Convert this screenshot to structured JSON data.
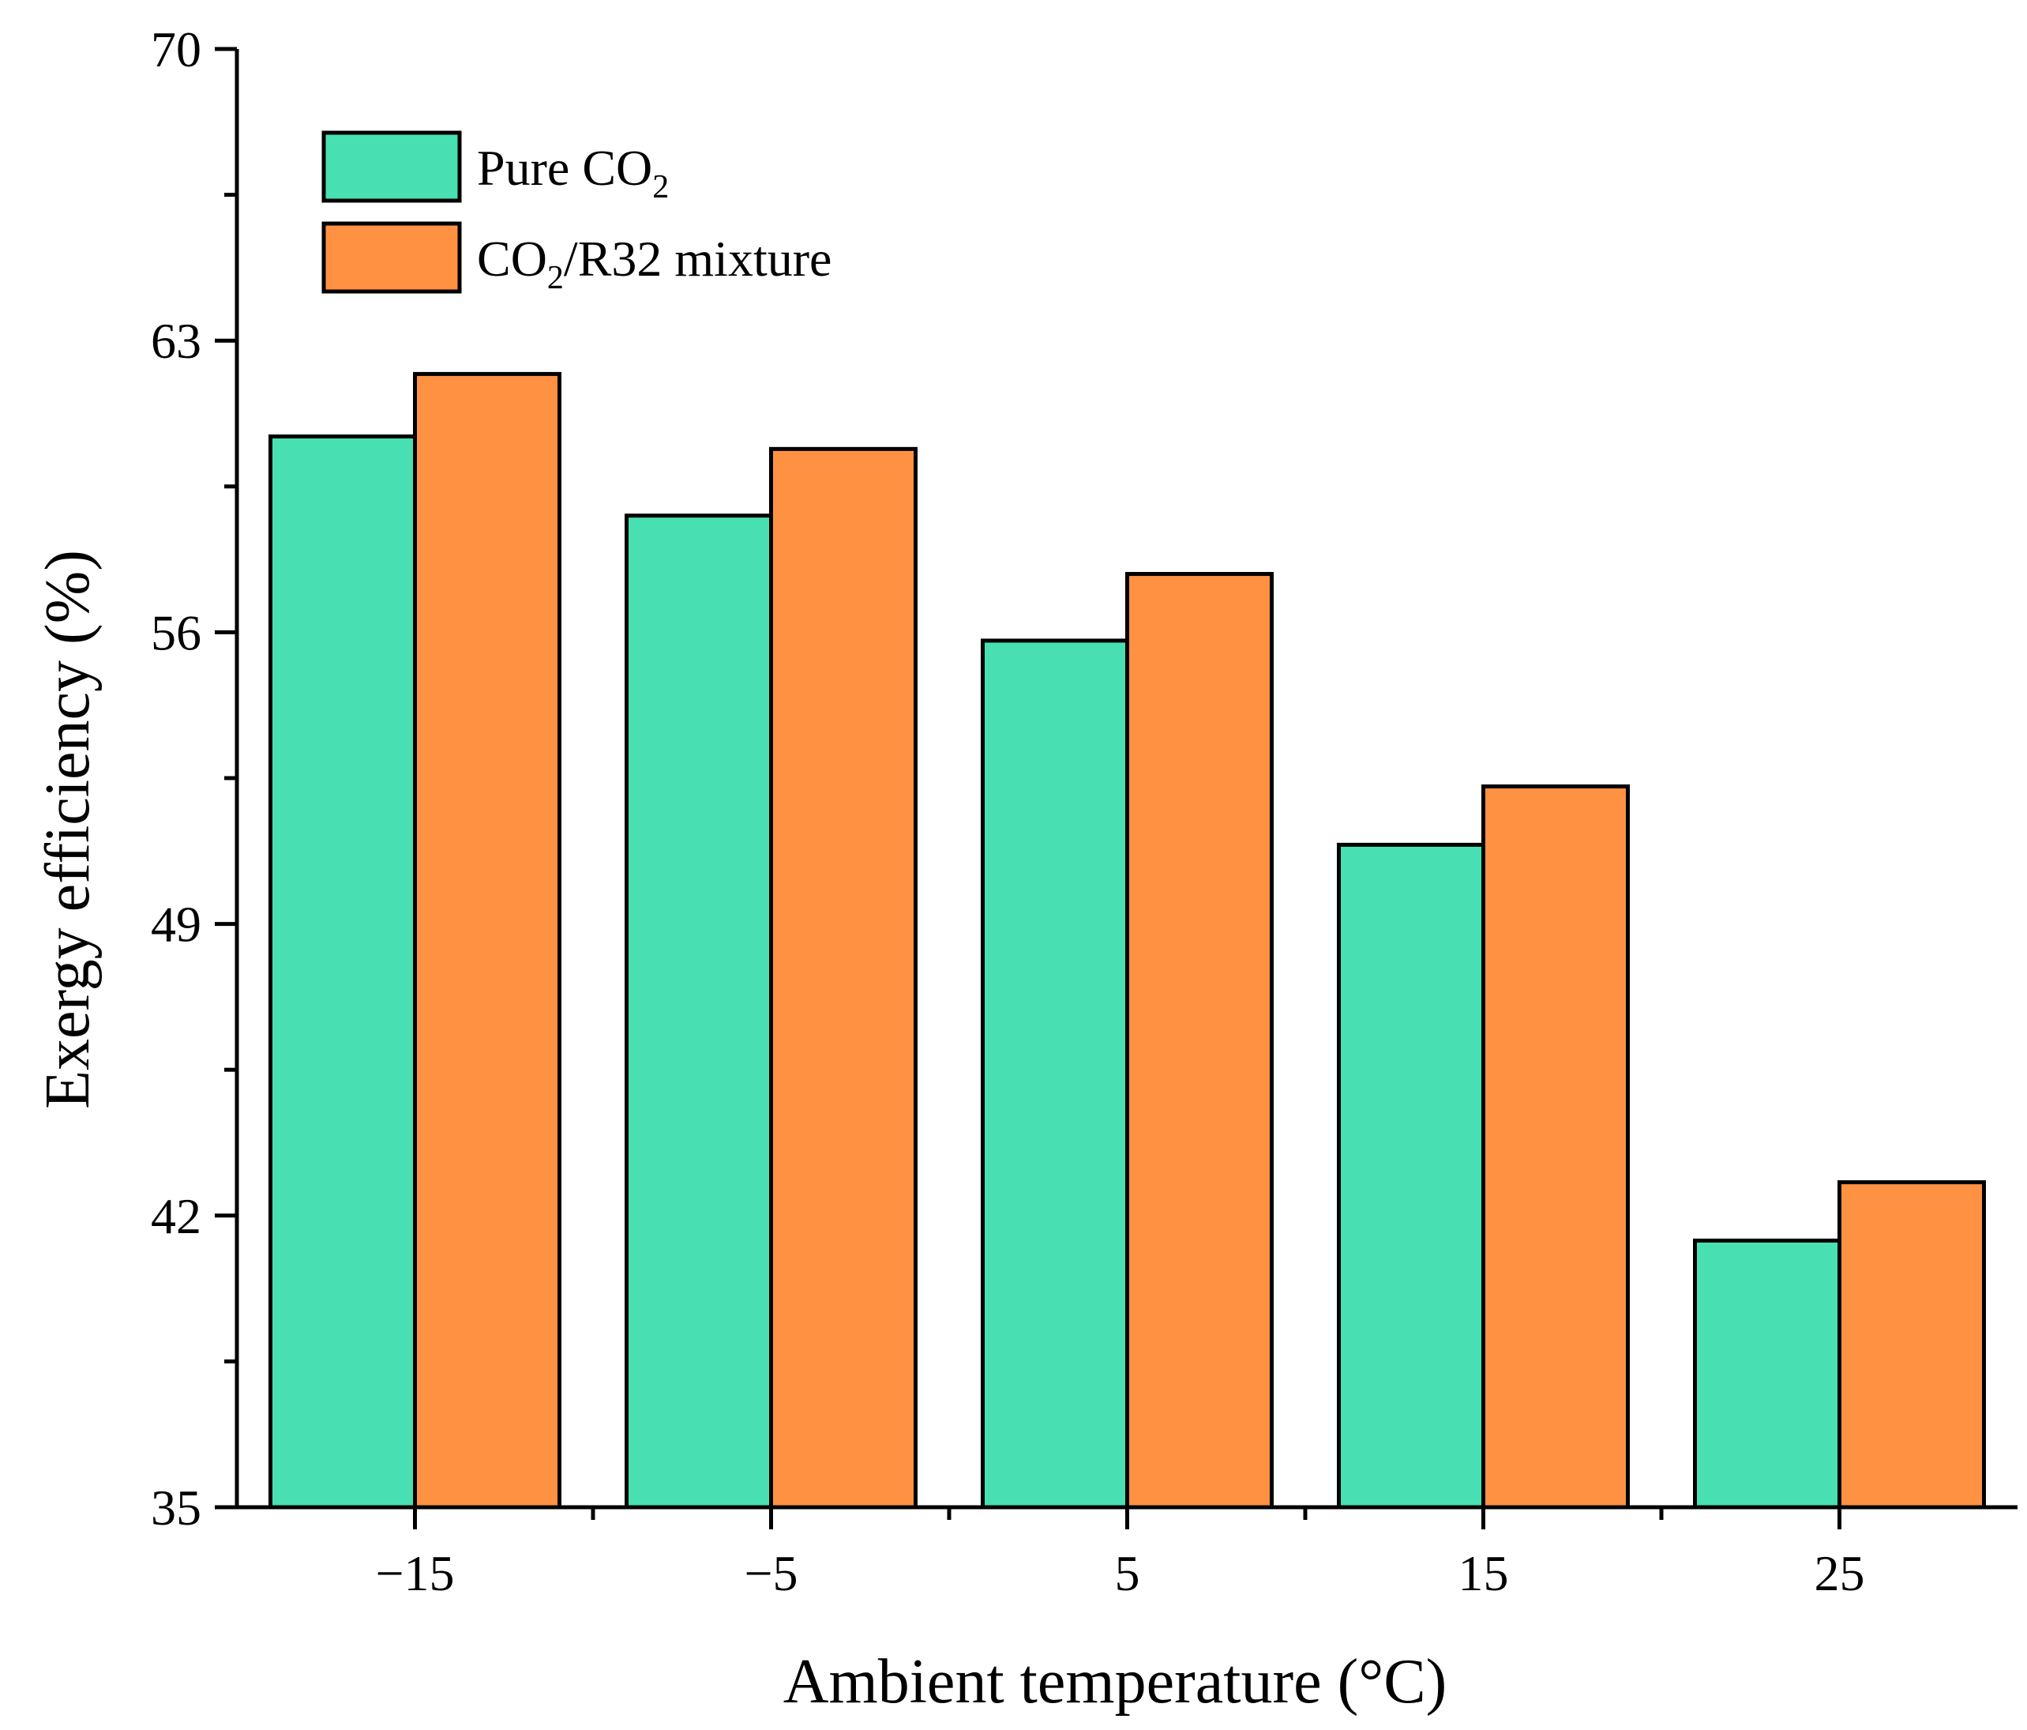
{
  "chart_data": {
    "type": "bar",
    "xlabel": "Ambient temperature (°C)",
    "ylabel": "Exergy efficiency (%)",
    "categories": [
      "−15",
      "−5",
      "5",
      "15",
      "25"
    ],
    "ylim": [
      35,
      70
    ],
    "yticks": [
      35,
      42,
      49,
      56,
      63,
      70
    ],
    "ytick_labels": [
      "35",
      "42",
      "49",
      "56",
      "63",
      "70"
    ],
    "grid": false,
    "legend_position": "top-left",
    "series": [
      {
        "name": "Pure CO2",
        "legend_main": "Pure CO",
        "legend_sub": "2",
        "legend_tail": "",
        "color": "#48E0B2",
        "values": [
          60.7,
          58.8,
          55.8,
          50.9,
          41.4
        ]
      },
      {
        "name": "CO2/R32 mixture",
        "legend_main": "CO",
        "legend_sub": "2",
        "legend_tail": "/R32 mixture",
        "color": "#FF9142",
        "values": [
          62.2,
          60.4,
          57.4,
          52.3,
          42.8
        ]
      }
    ]
  }
}
